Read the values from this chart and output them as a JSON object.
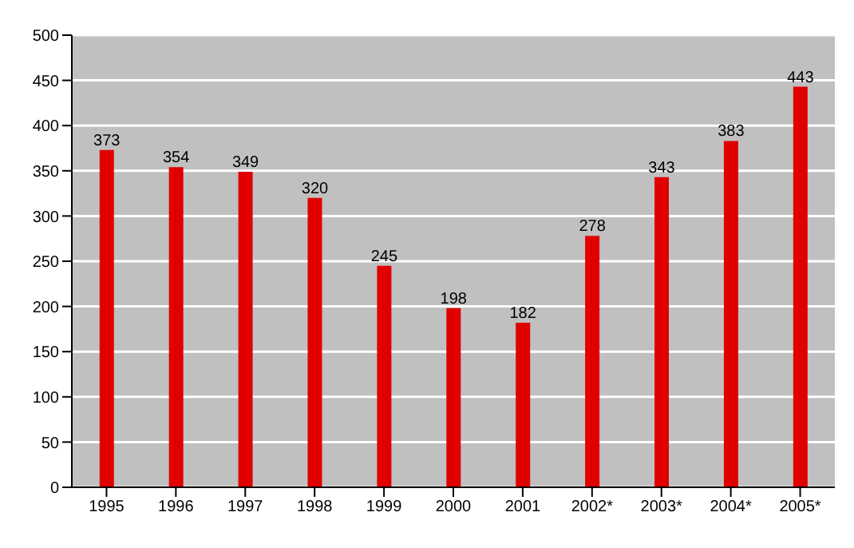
{
  "chart_data": {
    "type": "bar",
    "categories": [
      "1995",
      "1996",
      "1997",
      "1998",
      "1999",
      "2000",
      "2001",
      "2002*",
      "2003*",
      "2004*",
      "2005*"
    ],
    "values": [
      373,
      354,
      349,
      320,
      245,
      198,
      182,
      278,
      343,
      383,
      443
    ],
    "color": "#e00000",
    "ylim": [
      0,
      500
    ],
    "yticks": [
      0,
      50,
      100,
      150,
      200,
      250,
      300,
      350,
      400,
      450,
      500
    ],
    "grid": "y",
    "data_labels": true
  }
}
